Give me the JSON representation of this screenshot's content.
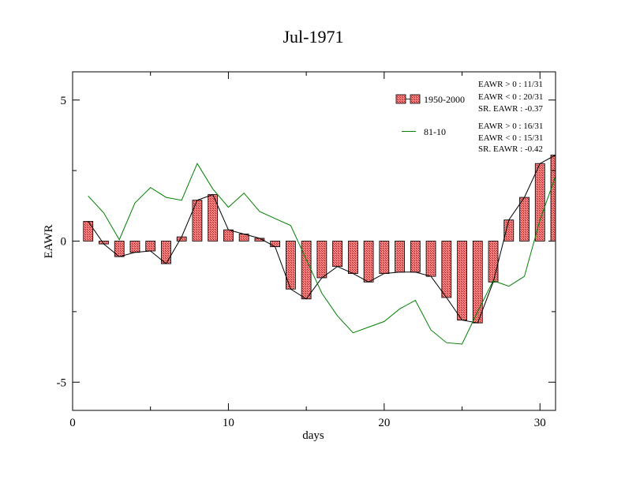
{
  "chart_data": {
    "type": "bar",
    "title": "Jul-1971",
    "xlabel": "days",
    "ylabel": "EAWR",
    "xlim": [
      0,
      31
    ],
    "ylim": [
      -6,
      6
    ],
    "xticks": [
      0,
      10,
      20,
      30
    ],
    "yticks": [
      -5,
      0,
      5
    ],
    "x": [
      1,
      2,
      3,
      4,
      5,
      6,
      7,
      8,
      9,
      10,
      11,
      12,
      13,
      14,
      15,
      16,
      17,
      18,
      19,
      20,
      21,
      22,
      23,
      24,
      25,
      26,
      27,
      28,
      29,
      30,
      31
    ],
    "series": [
      {
        "name": "1950-2000",
        "kind": "bar+line",
        "color": "#e05050",
        "values": [
          0.7,
          -0.1,
          -0.55,
          -0.4,
          -0.35,
          -0.8,
          0.15,
          1.45,
          1.65,
          0.4,
          0.25,
          0.1,
          -0.2,
          -1.7,
          -2.05,
          -1.3,
          -0.9,
          -1.15,
          -1.45,
          -1.15,
          -1.1,
          -1.1,
          -1.25,
          -2.0,
          -2.8,
          -2.9,
          -1.45,
          0.75,
          1.55,
          2.75,
          3.05
        ]
      },
      {
        "name": "81-10",
        "kind": "line",
        "color": "#008000",
        "values": [
          1.6,
          1.0,
          0.05,
          1.35,
          1.9,
          1.55,
          1.45,
          2.75,
          1.85,
          1.2,
          1.7,
          1.05,
          0.8,
          0.55,
          -0.65,
          -1.85,
          -2.65,
          -3.25,
          -3.05,
          -2.85,
          -2.4,
          -2.1,
          -3.15,
          -3.6,
          -3.65,
          -2.5,
          -1.4,
          -1.6,
          -1.25,
          0.75,
          2.3
        ]
      }
    ],
    "stats": [
      [
        "EAWR > 0 : 11/31",
        "EAWR < 0 : 20/31",
        "SR. EAWR : -0.37"
      ],
      [
        "EAWR > 0 : 16/31",
        "EAWR < 0 : 15/31",
        "SR. EAWR : -0.42"
      ]
    ],
    "legend_position": "top-right",
    "grid": false
  }
}
